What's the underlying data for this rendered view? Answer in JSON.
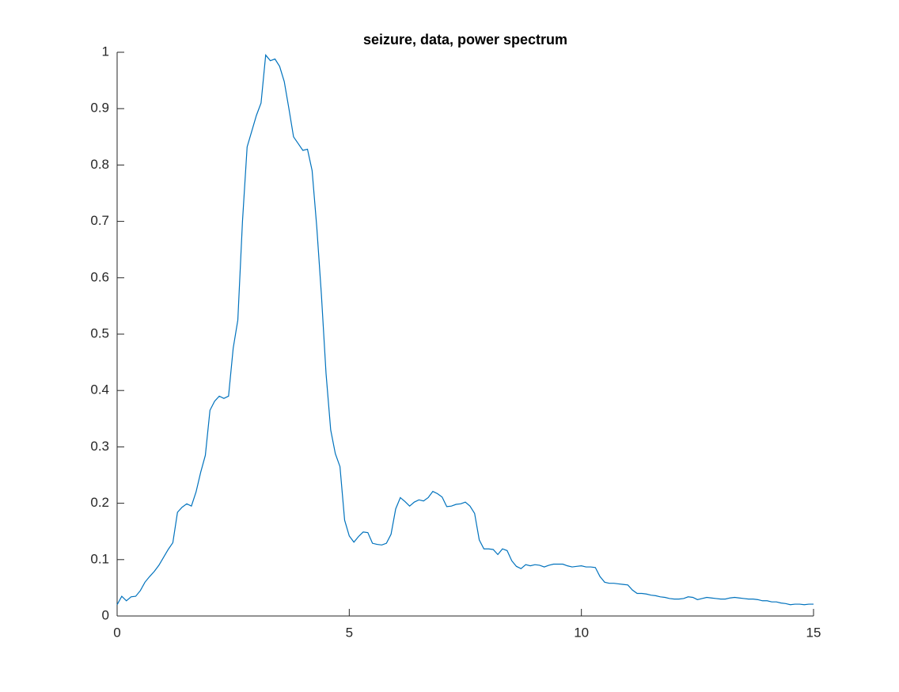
{
  "chart_data": {
    "type": "line",
    "title": "seizure, data, power spectrum",
    "x": [
      0,
      0.1,
      0.2,
      0.3,
      0.4,
      0.5,
      0.6,
      0.7,
      0.8,
      0.9,
      1,
      1.1,
      1.2,
      1.3,
      1.4,
      1.5,
      1.6,
      1.7,
      1.8,
      1.9,
      2,
      2.1,
      2.2,
      2.3,
      2.4,
      2.5,
      2.6,
      2.7,
      2.8,
      2.9,
      3,
      3.1,
      3.2,
      3.3,
      3.4,
      3.5,
      3.6,
      3.7,
      3.8,
      3.9,
      4,
      4.1,
      4.2,
      4.3,
      4.4,
      4.5,
      4.6,
      4.7,
      4.8,
      4.9,
      5,
      5.1,
      5.2,
      5.3,
      5.4,
      5.5,
      5.6,
      5.7,
      5.8,
      5.9,
      6,
      6.1,
      6.2,
      6.3,
      6.4,
      6.5,
      6.6,
      6.7,
      6.8,
      6.9,
      7,
      7.1,
      7.2,
      7.3,
      7.4,
      7.5,
      7.6,
      7.7,
      7.8,
      7.9,
      8,
      8.1,
      8.2,
      8.3,
      8.4,
      8.5,
      8.6,
      8.7,
      8.8,
      8.9,
      9,
      9.1,
      9.2,
      9.3,
      9.4,
      9.5,
      9.6,
      9.7,
      9.8,
      9.9,
      10,
      10.1,
      10.2,
      10.3,
      10.4,
      10.5,
      10.6,
      10.7,
      10.8,
      10.9,
      11,
      11.1,
      11.2,
      11.3,
      11.4,
      11.5,
      11.6,
      11.7,
      11.8,
      11.9,
      12,
      12.1,
      12.2,
      12.3,
      12.4,
      12.5,
      12.6,
      12.7,
      12.8,
      12.9,
      13,
      13.1,
      13.2,
      13.3,
      13.4,
      13.5,
      13.6,
      13.7,
      13.8,
      13.9,
      14,
      14.1,
      14.2,
      14.3,
      14.4,
      14.5,
      14.6,
      14.7,
      14.8,
      14.9,
      15
    ],
    "series": [
      {
        "color": "#0072bd",
        "values": [
          0.02,
          0.035,
          0.027,
          0.034,
          0.035,
          0.045,
          0.06,
          0.07,
          0.079,
          0.09,
          0.104,
          0.118,
          0.13,
          0.184,
          0.193,
          0.199,
          0.195,
          0.22,
          0.255,
          0.285,
          0.365,
          0.381,
          0.39,
          0.386,
          0.39,
          0.475,
          0.525,
          0.7,
          0.832,
          0.86,
          0.888,
          0.91,
          0.995,
          0.985,
          0.988,
          0.975,
          0.948,
          0.9,
          0.85,
          0.838,
          0.826,
          0.828,
          0.79,
          0.69,
          0.57,
          0.43,
          0.33,
          0.288,
          0.265,
          0.17,
          0.142,
          0.131,
          0.141,
          0.149,
          0.148,
          0.129,
          0.127,
          0.126,
          0.129,
          0.145,
          0.19,
          0.21,
          0.203,
          0.195,
          0.202,
          0.206,
          0.204,
          0.21,
          0.221,
          0.217,
          0.211,
          0.194,
          0.195,
          0.198,
          0.199,
          0.202,
          0.195,
          0.182,
          0.135,
          0.119,
          0.119,
          0.118,
          0.109,
          0.119,
          0.116,
          0.098,
          0.088,
          0.084,
          0.091,
          0.089,
          0.091,
          0.09,
          0.087,
          0.09,
          0.092,
          0.092,
          0.092,
          0.089,
          0.087,
          0.088,
          0.089,
          0.087,
          0.087,
          0.086,
          0.07,
          0.06,
          0.058,
          0.058,
          0.057,
          0.056,
          0.055,
          0.046,
          0.04,
          0.04,
          0.039,
          0.037,
          0.036,
          0.034,
          0.033,
          0.031,
          0.03,
          0.03,
          0.031,
          0.034,
          0.033,
          0.029,
          0.031,
          0.033,
          0.032,
          0.031,
          0.03,
          0.03,
          0.032,
          0.033,
          0.032,
          0.031,
          0.03,
          0.03,
          0.029,
          0.027,
          0.027,
          0.025,
          0.025,
          0.023,
          0.022,
          0.02,
          0.021,
          0.021,
          0.02,
          0.021,
          0.021
        ]
      }
    ],
    "xlim": [
      0,
      15
    ],
    "xticks": [
      0,
      5,
      10,
      15
    ],
    "ylim": [
      0,
      1
    ],
    "yticks": [
      0,
      0.1,
      0.2,
      0.3,
      0.4,
      0.5,
      0.6,
      0.7,
      0.8,
      0.9,
      1
    ]
  }
}
